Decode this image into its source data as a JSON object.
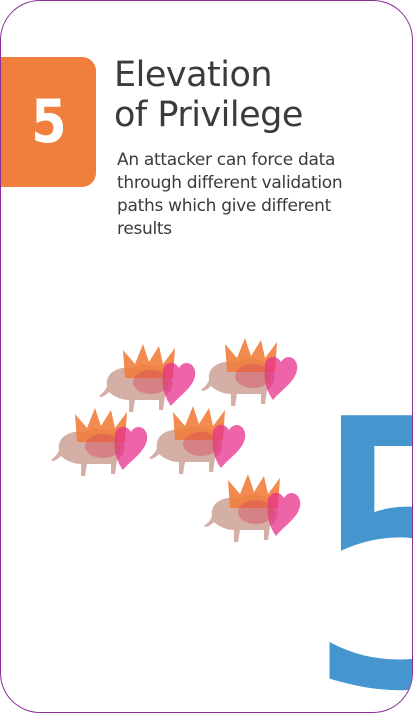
{
  "card": {
    "rank": "5",
    "title_lines": [
      "Elevation",
      "of Privilege"
    ],
    "description": "An attacker can force data through different validation paths which give different results",
    "background_rank": "5"
  },
  "colors": {
    "border": "#8a2f96",
    "badge": "#f07e3c",
    "big_rank": "#4596cf",
    "text": "#3b3b3b",
    "crown": "#f07e3c",
    "heart": "#e8308c",
    "bison": "#b87a6a"
  },
  "illustration": {
    "icon_name": "crowned-bison-heart-icon",
    "count": 5
  }
}
